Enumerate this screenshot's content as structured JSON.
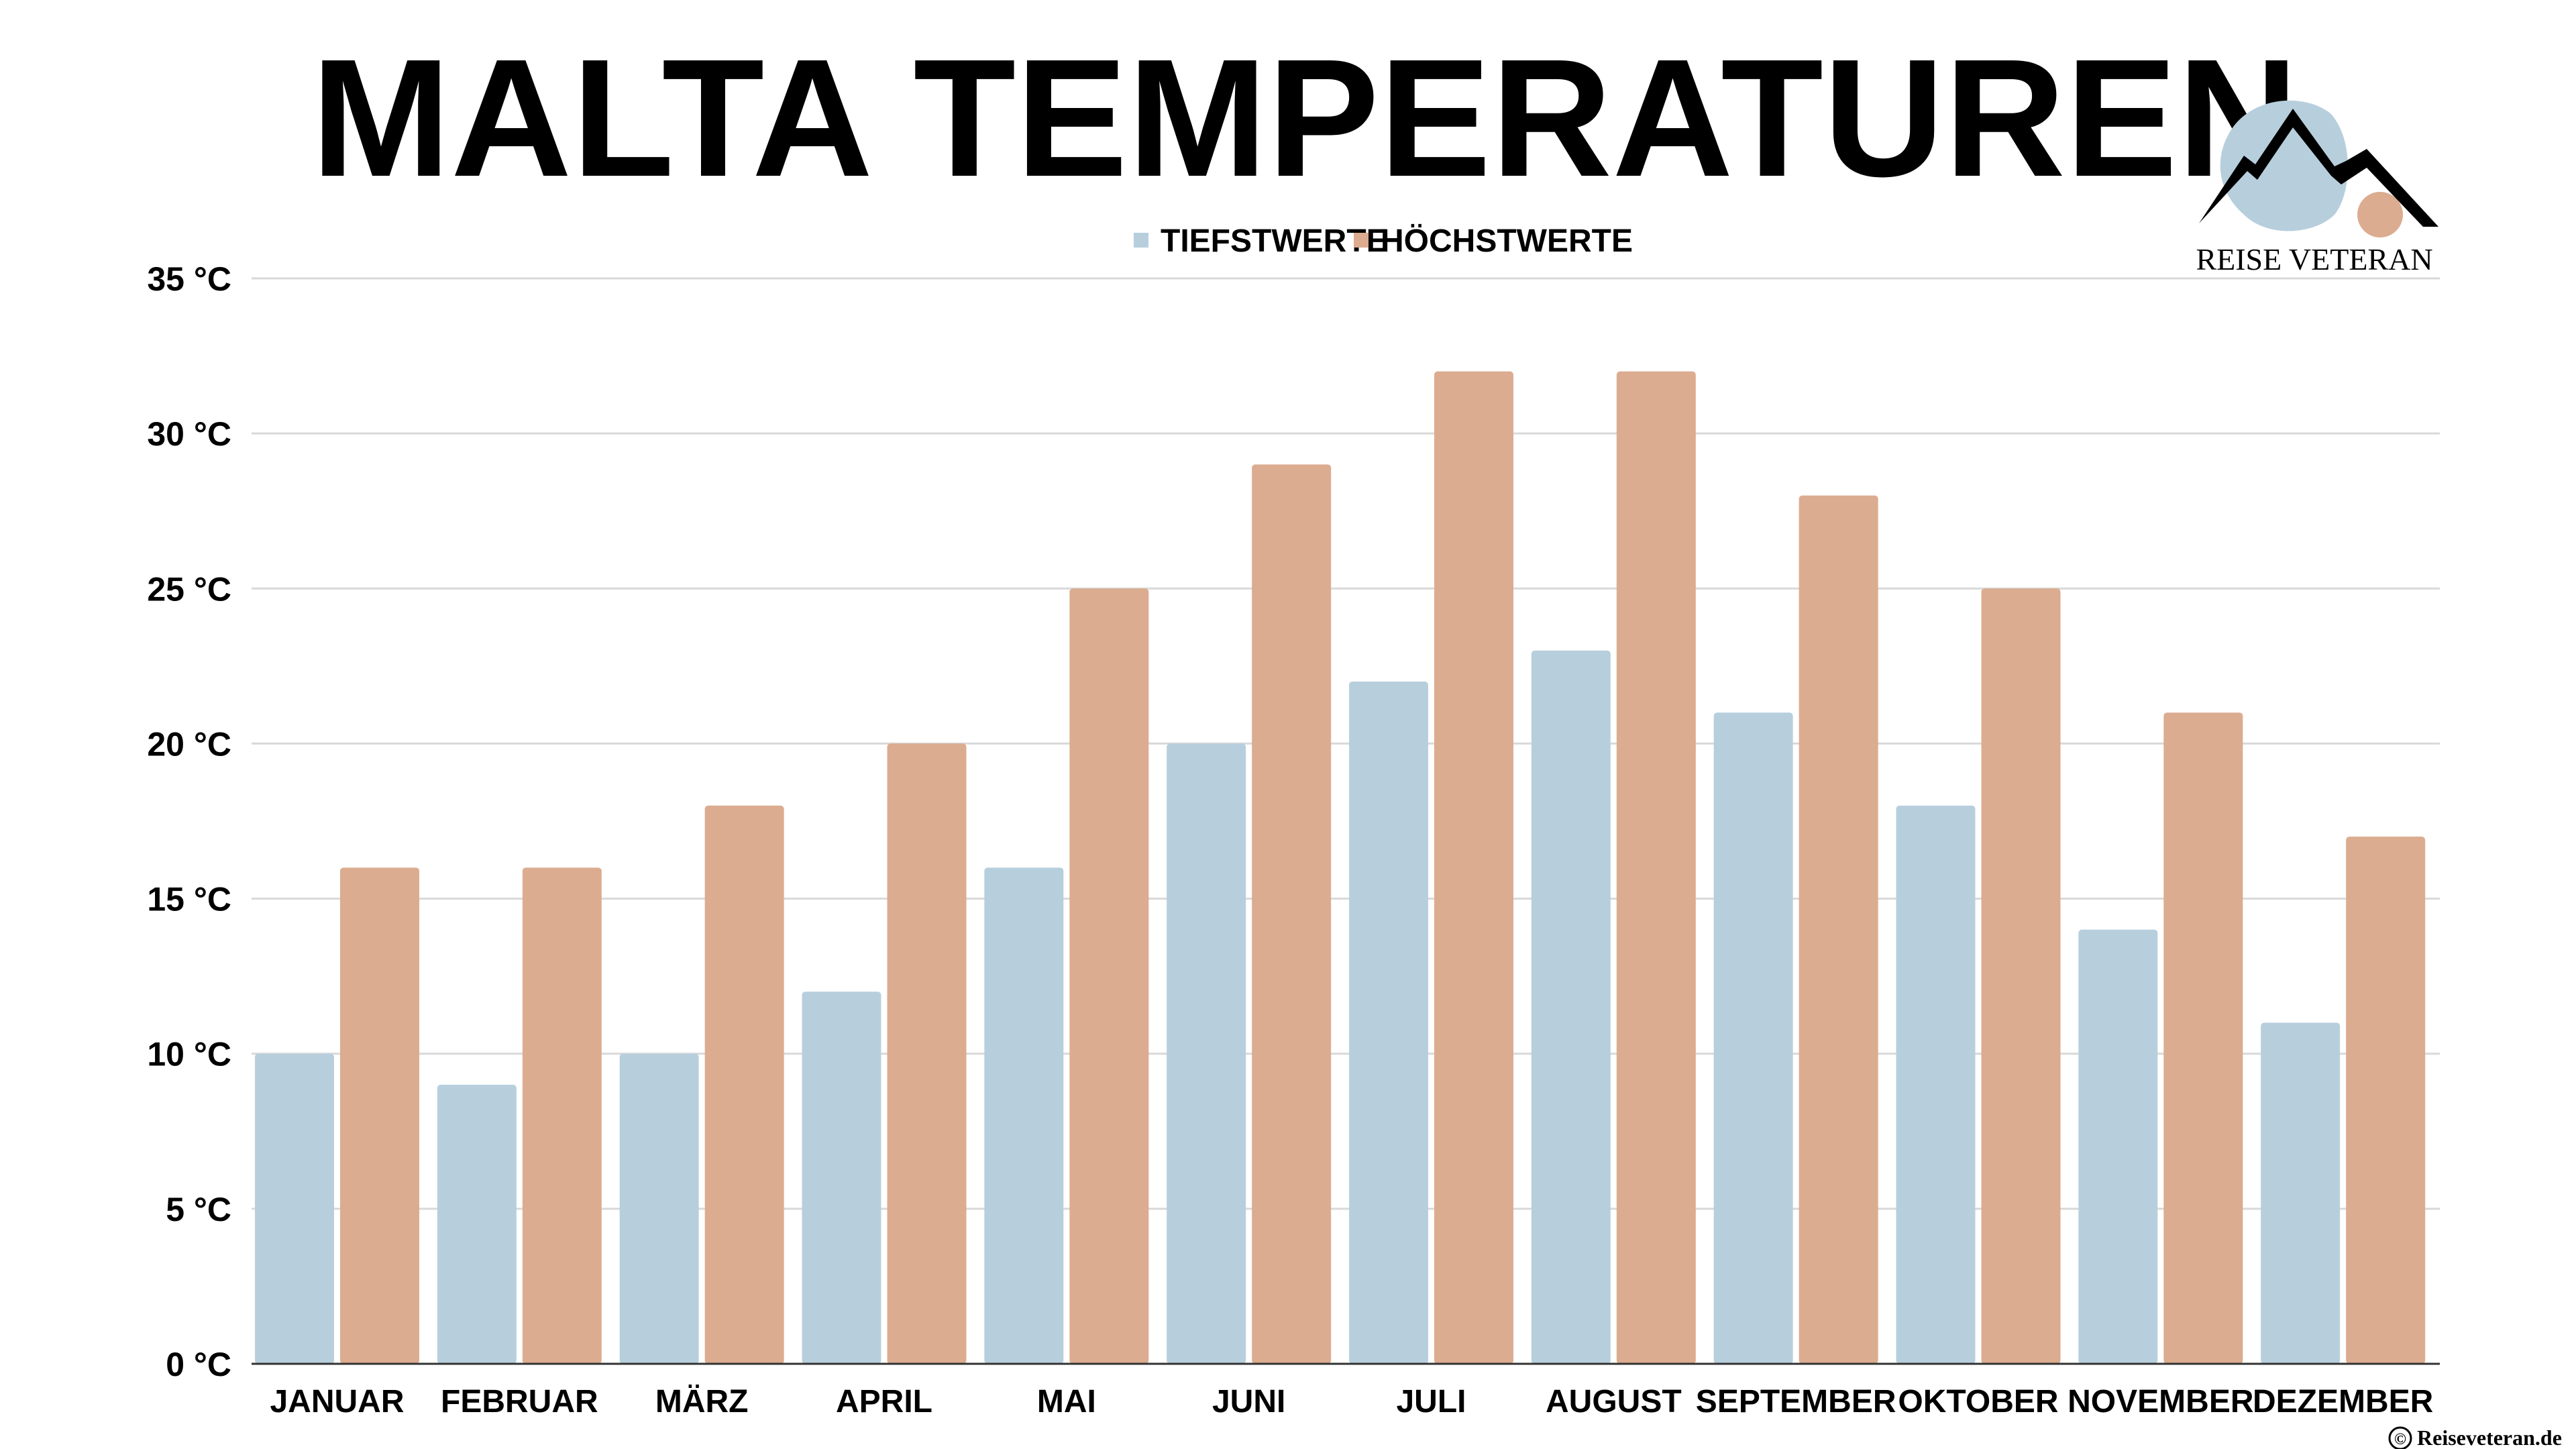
{
  "page": {
    "title": "MALTA TEMPERATUREN",
    "credit": "Reiseveteran.de",
    "credit_symbol": "©"
  },
  "logo": {
    "text": "REISE VETERAN",
    "mountain_color": "#000000",
    "blob_color": "#b7cfdd",
    "sun_color": "#dcac90"
  },
  "colors": {
    "low": "#b7cfdd",
    "high": "#dcac90",
    "grid": "#d9d9d9",
    "axis_line": "#333333",
    "text": "#000000"
  },
  "chart_data": {
    "type": "bar",
    "title": "MALTA TEMPERATUREN",
    "xlabel": "",
    "ylabel": "",
    "categories": [
      "JANUAR",
      "FEBRUAR",
      "MÄRZ",
      "APRIL",
      "MAI",
      "JUNI",
      "JULI",
      "AUGUST",
      "SEPTEMBER",
      "OKTOBER",
      "NOVEMBER",
      "DEZEMBER"
    ],
    "series": [
      {
        "name": "TIEFSTWERTE",
        "color": "#b7cfdd",
        "values": [
          10,
          9,
          10,
          12,
          16,
          20,
          22,
          23,
          21,
          18,
          14,
          11
        ]
      },
      {
        "name": "HÖCHSTWERTE",
        "color": "#dcac90",
        "values": [
          16,
          16,
          18,
          20,
          25,
          29,
          32,
          32,
          28,
          25,
          21,
          17
        ]
      }
    ],
    "y_ticks": [
      0,
      5,
      10,
      15,
      20,
      25,
      30,
      35
    ],
    "y_tick_suffix": " °C",
    "ylim": [
      0,
      35
    ],
    "grid": true,
    "legend_position": "top-center"
  }
}
